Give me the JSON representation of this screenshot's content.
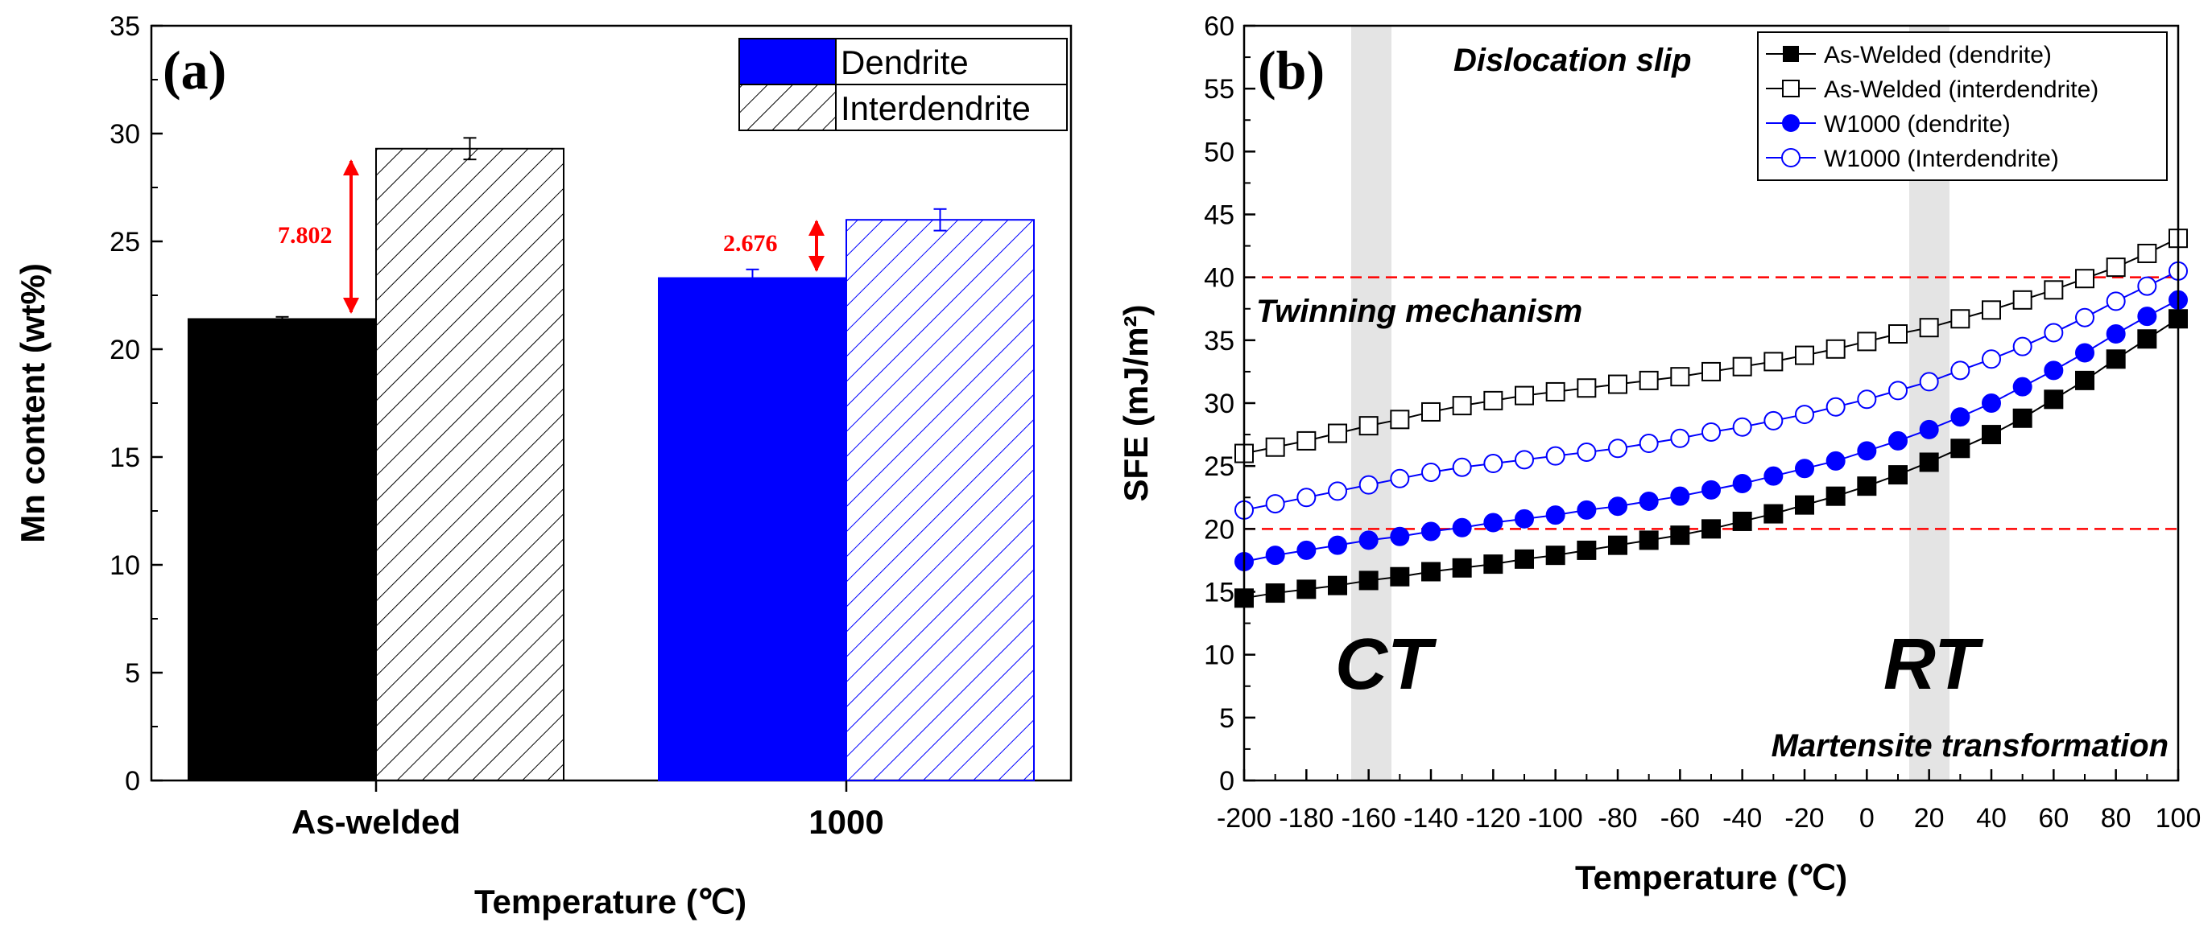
{
  "chart_data": [
    {
      "type": "bar",
      "panel_label": "(a)",
      "ylabel": "Mn content (wt%)",
      "xlabel": "Temperature (℃)",
      "ylim": [
        0,
        35
      ],
      "yticks": [
        "0",
        "5",
        "10",
        "15",
        "20",
        "25",
        "30",
        "35"
      ],
      "categories": [
        "As-welded",
        "1000"
      ],
      "series": [
        {
          "name": "Dendrite",
          "values": [
            21.4,
            23.3
          ],
          "errors": [
            0.1,
            0.4
          ],
          "colors": [
            "#000000",
            "#0000ff"
          ]
        },
        {
          "name": "Interdendrite",
          "values": [
            29.3,
            26.0
          ],
          "errors": [
            0.5,
            0.5
          ],
          "colors": [
            "#000000",
            "#0000ff"
          ]
        }
      ],
      "annotations": [
        "7.802",
        "2.676"
      ],
      "annotation_color": "#ff0000",
      "legend_position": "top-right"
    },
    {
      "type": "line",
      "panel_label": "(b)",
      "ylabel": "SFE (mJ/m²)",
      "xlabel": "Temperature (℃)",
      "xlim": [
        -200,
        100
      ],
      "ylim": [
        0,
        60
      ],
      "xticks": [
        "-200",
        "-180",
        "-160",
        "-140",
        "-120",
        "-100",
        "-80",
        "-60",
        "-40",
        "-20",
        "0",
        "20",
        "40",
        "60",
        "80",
        "100"
      ],
      "yticks": [
        "0",
        "5",
        "10",
        "15",
        "20",
        "25",
        "30",
        "35",
        "40",
        "45",
        "50",
        "55",
        "60"
      ],
      "x": [
        -200,
        -190,
        -180,
        -170,
        -160,
        -150,
        -140,
        -130,
        -120,
        -110,
        -100,
        -90,
        -80,
        -70,
        -60,
        -50,
        -40,
        -30,
        -20,
        -10,
        0,
        10,
        20,
        30,
        40,
        50,
        60,
        70,
        80,
        90,
        100
      ],
      "series": [
        {
          "name": "As-Welded (dendrite)",
          "color": "#000000",
          "marker": "square-filled",
          "values": [
            14.5,
            14.9,
            15.2,
            15.5,
            15.9,
            16.2,
            16.6,
            16.9,
            17.2,
            17.6,
            17.9,
            18.3,
            18.7,
            19.1,
            19.5,
            20.0,
            20.6,
            21.2,
            21.9,
            22.6,
            23.4,
            24.3,
            25.3,
            26.4,
            27.5,
            28.8,
            30.3,
            31.8,
            33.5,
            35.1,
            36.7
          ]
        },
        {
          "name": "As-Welded (interdendrite)",
          "color": "#000000",
          "marker": "square-open",
          "values": [
            26.0,
            26.5,
            27.0,
            27.6,
            28.2,
            28.7,
            29.3,
            29.8,
            30.2,
            30.6,
            30.9,
            31.2,
            31.5,
            31.8,
            32.1,
            32.5,
            32.9,
            33.3,
            33.8,
            34.3,
            34.9,
            35.5,
            36.0,
            36.7,
            37.4,
            38.2,
            39.0,
            39.9,
            40.8,
            41.9,
            43.1
          ]
        },
        {
          "name": "W1000 (dendrite)",
          "color": "#0000ff",
          "marker": "circle-filled",
          "values": [
            17.4,
            17.9,
            18.3,
            18.7,
            19.1,
            19.4,
            19.8,
            20.1,
            20.5,
            20.8,
            21.1,
            21.5,
            21.8,
            22.2,
            22.6,
            23.1,
            23.6,
            24.2,
            24.8,
            25.4,
            26.2,
            27.0,
            27.9,
            28.9,
            30.0,
            31.3,
            32.6,
            34.0,
            35.5,
            36.9,
            38.2
          ]
        },
        {
          "name": "W1000 (Interdendrite)",
          "color": "#0000ff",
          "marker": "circle-open",
          "values": [
            21.5,
            22.0,
            22.5,
            23.0,
            23.5,
            24.0,
            24.5,
            24.9,
            25.2,
            25.5,
            25.8,
            26.1,
            26.4,
            26.8,
            27.2,
            27.7,
            28.1,
            28.6,
            29.1,
            29.7,
            30.3,
            31.0,
            31.7,
            32.6,
            33.5,
            34.5,
            35.6,
            36.8,
            38.1,
            39.3,
            40.5
          ]
        }
      ],
      "reference_lines": [
        {
          "y": 40,
          "color": "#ff0000"
        },
        {
          "y": 20,
          "color": "#ff0000"
        }
      ],
      "shaded_bands": [
        {
          "x_center": -160,
          "label": "CT"
        },
        {
          "x_center": 20,
          "label": "RT"
        }
      ],
      "region_labels": {
        "top": "Dislocation slip",
        "middle": "Twinning mechanism",
        "bottom": "Martensite transformation"
      },
      "legend_position": "top-right"
    }
  ]
}
